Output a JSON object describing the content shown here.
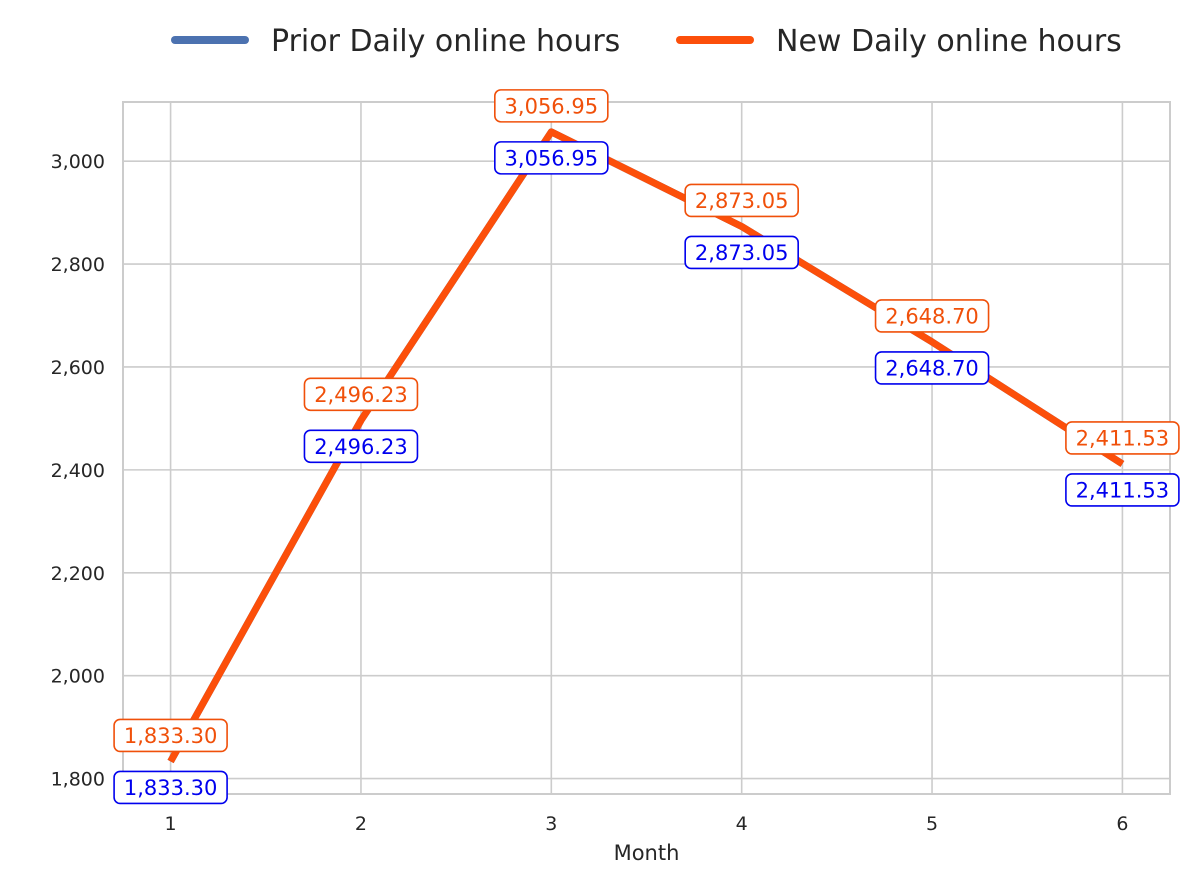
{
  "chart_data": {
    "type": "line",
    "title": "",
    "xlabel": "Month",
    "ylabel": "",
    "x": [
      1,
      2,
      3,
      4,
      5,
      6
    ],
    "xlim": [
      0.75,
      6.25
    ],
    "ylim": [
      1770,
      3115
    ],
    "yticks": [
      1800,
      2000,
      2200,
      2400,
      2600,
      2800,
      3000
    ],
    "ytick_labels": [
      "1,800",
      "2,000",
      "2,200",
      "2,400",
      "2,600",
      "2,800",
      "3,000"
    ],
    "xtick_labels": [
      "1",
      "2",
      "3",
      "4",
      "5",
      "6"
    ],
    "grid": true,
    "legend_position": "top-center",
    "series": [
      {
        "name": "Prior Daily online hours",
        "color": "#4c72b0",
        "label_color": "#0000ee",
        "values": [
          1833.3,
          2496.23,
          3056.95,
          2873.05,
          2648.7,
          2411.53
        ],
        "labels": [
          "1,833.30",
          "2,496.23",
          "3,056.95",
          "2,873.05",
          "2,648.70",
          "2,411.53"
        ]
      },
      {
        "name": "New Daily online hours",
        "color": "#fc4f0a",
        "label_color": "#f0500a",
        "values": [
          1833.3,
          2496.23,
          3056.95,
          2873.05,
          2648.7,
          2411.53
        ],
        "labels": [
          "1,833.30",
          "2,496.23",
          "3,056.95",
          "2,873.05",
          "2,648.70",
          "2,411.53"
        ]
      }
    ]
  }
}
